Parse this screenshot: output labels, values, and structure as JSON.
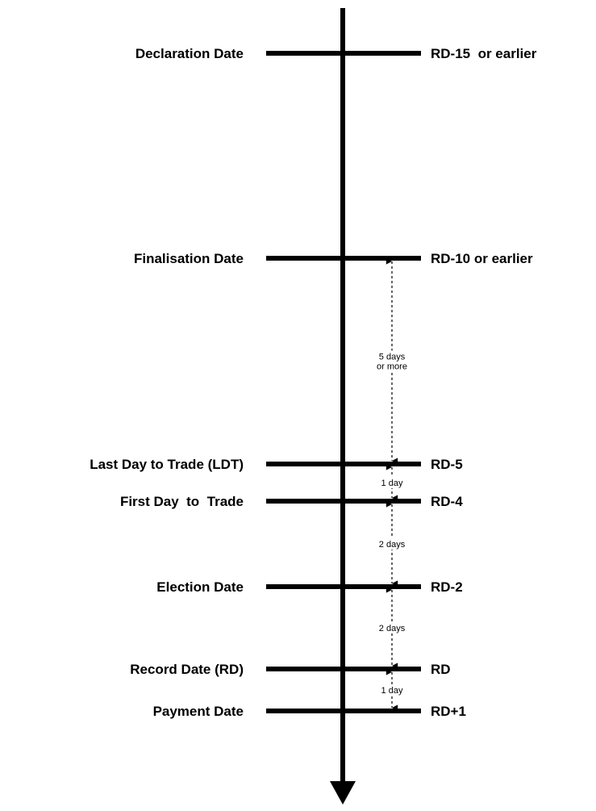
{
  "events": [
    {
      "name": "Declaration Date",
      "offset": "RD-15  or earlier"
    },
    {
      "name": "Finalisation Date",
      "offset": "RD-10 or earlier"
    },
    {
      "name": "Last Day to Trade (LDT)",
      "offset": "RD-5"
    },
    {
      "name": "First Day  to  Trade",
      "offset": "RD-4"
    },
    {
      "name": "Election Date",
      "offset": "RD-2"
    },
    {
      "name": "Record Date (RD)",
      "offset": "RD"
    },
    {
      "name": "Payment Date",
      "offset": "RD+1"
    }
  ],
  "gaps": [
    {
      "from": 1,
      "to": 2,
      "label": [
        "5 days",
        "or more"
      ]
    },
    {
      "from": 2,
      "to": 3,
      "label": [
        "1 day"
      ]
    },
    {
      "from": 3,
      "to": 4,
      "label": [
        "2 days"
      ]
    },
    {
      "from": 4,
      "to": 5,
      "label": [
        "2 days"
      ]
    },
    {
      "from": 5,
      "to": 6,
      "label": [
        "1 day"
      ]
    }
  ]
}
